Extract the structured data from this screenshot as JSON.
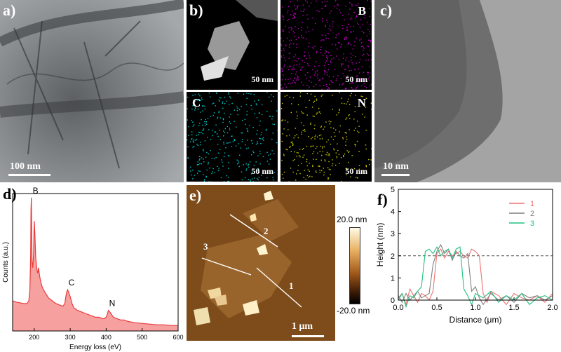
{
  "figure": {
    "panel_a": {
      "label": "a)",
      "scale": "100 nm"
    },
    "panel_b": {
      "label": "b)",
      "scale": "50 nm",
      "maps": [
        "B",
        "C",
        "N"
      ],
      "map_colors": {
        "B": "#c000c0",
        "C": "#00c8c8",
        "N": "#c8c800"
      }
    },
    "panel_c": {
      "label": "c)",
      "scale": "10 nm"
    },
    "panel_d": {
      "label": "d)"
    },
    "panel_e": {
      "label": "e)",
      "scale": "1 μm",
      "colorbar_max": "20.0 nm",
      "colorbar_min": "-20.0 nm",
      "line_labels": [
        "1",
        "2",
        "3"
      ]
    },
    "panel_f": {
      "label": "f)"
    }
  },
  "chart_data": [
    {
      "type": "area",
      "panel": "d",
      "xlabel": "Energy loss (eV)",
      "ylabel": "Counts (a.u.)",
      "xlim": [
        140,
        600
      ],
      "xticks": [
        "200",
        "300",
        "400",
        "500",
        "600"
      ],
      "peak_labels": [
        {
          "text": "B",
          "x": 192
        },
        {
          "text": "C",
          "x": 292
        },
        {
          "text": "N",
          "x": 405
        }
      ],
      "color": "#e83c3c",
      "fill": "#f7a0a0",
      "x": [
        140,
        150,
        160,
        170,
        180,
        185,
        188,
        190,
        191,
        192,
        193,
        194,
        196,
        198,
        200,
        202,
        204,
        206,
        208,
        210,
        212,
        215,
        218,
        222,
        226,
        230,
        235,
        240,
        250,
        260,
        270,
        280,
        285,
        288,
        290,
        293,
        296,
        300,
        305,
        310,
        320,
        330,
        340,
        350,
        360,
        370,
        380,
        390,
        395,
        400,
        403,
        406,
        410,
        415,
        420,
        430,
        440,
        450,
        460,
        480,
        500,
        520,
        540,
        560,
        580,
        600
      ],
      "y": [
        0.22,
        0.21,
        0.205,
        0.2,
        0.2,
        0.22,
        0.3,
        0.55,
        0.88,
        0.97,
        0.75,
        0.5,
        0.46,
        0.55,
        0.8,
        0.7,
        0.55,
        0.48,
        0.44,
        0.42,
        0.46,
        0.4,
        0.36,
        0.32,
        0.3,
        0.28,
        0.26,
        0.24,
        0.22,
        0.2,
        0.19,
        0.18,
        0.2,
        0.25,
        0.28,
        0.3,
        0.28,
        0.25,
        0.2,
        0.17,
        0.15,
        0.14,
        0.13,
        0.12,
        0.11,
        0.1,
        0.1,
        0.09,
        0.09,
        0.1,
        0.12,
        0.15,
        0.14,
        0.12,
        0.1,
        0.09,
        0.08,
        0.08,
        0.07,
        0.06,
        0.055,
        0.05,
        0.045,
        0.045,
        0.04,
        0.04
      ]
    },
    {
      "type": "line",
      "panel": "f",
      "xlabel": "Distance (μm)",
      "ylabel": "Height (nm)",
      "xlim": [
        0,
        2.0
      ],
      "ylim": [
        0,
        5
      ],
      "xticks": [
        "0.0",
        "0.5",
        "1.0",
        "1.5",
        "2.0"
      ],
      "yticks": [
        "0",
        "1",
        "2",
        "3",
        "4",
        "5"
      ],
      "reference_line": 2,
      "legend_position": "top-right",
      "series": [
        {
          "name": "1",
          "color": "#f07070",
          "x": [
            0,
            0.05,
            0.1,
            0.15,
            0.2,
            0.25,
            0.3,
            0.35,
            0.4,
            0.45,
            0.5,
            0.55,
            0.6,
            0.65,
            0.7,
            0.75,
            0.8,
            0.85,
            0.9,
            0.95,
            1.0,
            1.05,
            1.1,
            1.15,
            1.2,
            1.3,
            1.4,
            1.5,
            1.6,
            1.7,
            1.8,
            1.9,
            2.0
          ],
          "y": [
            0.1,
            0.3,
            -0.2,
            0.5,
            0.2,
            -0.1,
            0.3,
            0.2,
            0.0,
            0.4,
            2.1,
            2.3,
            1.9,
            2.2,
            2.0,
            2.1,
            2.2,
            2.0,
            1.9,
            2.3,
            2.2,
            2.0,
            0.3,
            -0.1,
            0.4,
            0.2,
            -0.2,
            0.3,
            0.1,
            0.0,
            0.2,
            -0.1,
            0.3
          ]
        },
        {
          "name": "2",
          "color": "#808080",
          "x": [
            0,
            0.05,
            0.1,
            0.15,
            0.2,
            0.25,
            0.3,
            0.35,
            0.4,
            0.45,
            0.5,
            0.55,
            0.6,
            0.65,
            0.7,
            0.75,
            0.8,
            0.85,
            0.9,
            0.95,
            1.0,
            1.05,
            1.1,
            1.2,
            1.3,
            1.4,
            1.5,
            1.6,
            1.7,
            1.8,
            1.9,
            2.0
          ],
          "y": [
            0.2,
            -0.1,
            0.3,
            0.0,
            0.2,
            0.4,
            0.1,
            0.2,
            0.3,
            1.6,
            2.2,
            2.5,
            2.1,
            2.3,
            1.8,
            2.2,
            2.0,
            1.9,
            2.1,
            0.4,
            0.6,
            0.1,
            -0.2,
            0.3,
            0.0,
            0.2,
            -0.1,
            0.3,
            0.1,
            0.2,
            0.0,
            0.2
          ]
        },
        {
          "name": "3",
          "color": "#20c080",
          "x": [
            0,
            0.05,
            0.1,
            0.15,
            0.2,
            0.25,
            0.3,
            0.35,
            0.4,
            0.45,
            0.5,
            0.55,
            0.6,
            0.65,
            0.7,
            0.75,
            0.8,
            0.85,
            0.9,
            0.95,
            1.0,
            1.1,
            1.2,
            1.3,
            1.4,
            1.5,
            1.6,
            1.7,
            1.8,
            1.9,
            2.0
          ],
          "y": [
            0.0,
            0.3,
            -0.3,
            0.2,
            0.1,
            0.4,
            0.6,
            2.2,
            2.3,
            2.1,
            2.4,
            2.0,
            2.2,
            2.3,
            1.9,
            2.3,
            2.4,
            0.5,
            0.2,
            -0.2,
            0.3,
            0.1,
            0.4,
            -0.1,
            0.2,
            0.0,
            0.3,
            -0.2,
            0.1,
            0.2,
            0.0
          ]
        }
      ]
    }
  ]
}
